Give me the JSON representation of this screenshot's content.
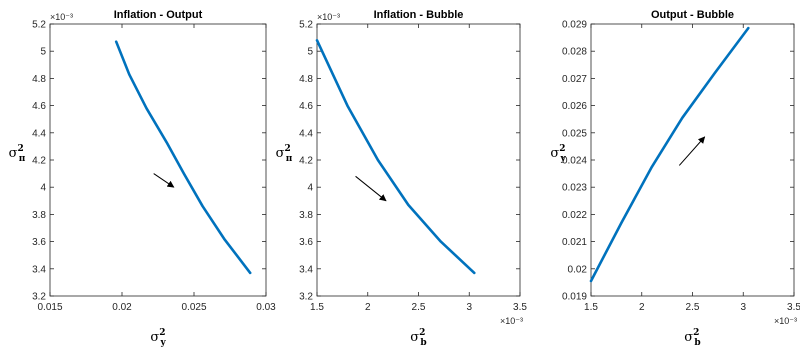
{
  "chart_data": [
    {
      "type": "line",
      "title": "Inflation - Output",
      "xlabel": {
        "base": "σ",
        "sup": "2",
        "sub": "y"
      },
      "ylabel": {
        "base": "σ",
        "sup": "2",
        "sub": "π"
      },
      "xlim": [
        0.015,
        0.03
      ],
      "ylim": [
        0.0032,
        0.0052
      ],
      "x_ticks": [
        0.015,
        0.02,
        0.025,
        0.03
      ],
      "x_tick_labels": [
        "0.015",
        "0.02",
        "0.025",
        "0.03"
      ],
      "x_exponent": "",
      "y_ticks": [
        0.0032,
        0.0034,
        0.0036,
        0.0038,
        0.004,
        0.0042,
        0.0044,
        0.0046,
        0.0048,
        0.005,
        0.0052
      ],
      "y_tick_labels": [
        "3.2",
        "3.4",
        "3.6",
        "3.8",
        "4",
        "4.2",
        "4.4",
        "4.6",
        "4.8",
        "5",
        "5.2"
      ],
      "y_exponent": "×10⁻³",
      "series": [
        {
          "color": "#0072bd",
          "x": [
            0.0196,
            0.0205,
            0.0217,
            0.0231,
            0.0243,
            0.0256,
            0.0271,
            0.0289
          ],
          "y": [
            0.00507,
            0.00483,
            0.00458,
            0.00433,
            0.0041,
            0.00386,
            0.00362,
            0.00337
          ]
        }
      ],
      "arrow": {
        "from": [
          0.0222,
          0.0041
        ],
        "to": [
          0.0236,
          0.004
        ]
      }
    },
    {
      "type": "line",
      "title": "Inflation - Bubble",
      "xlabel": {
        "base": "σ",
        "sup": "2",
        "sub": "b"
      },
      "ylabel": {
        "base": "σ",
        "sup": "2",
        "sub": "π"
      },
      "xlim": [
        0.0015,
        0.0035
      ],
      "ylim": [
        0.0032,
        0.0052
      ],
      "x_ticks": [
        0.0015,
        0.002,
        0.0025,
        0.003,
        0.0035
      ],
      "x_tick_labels": [
        "1.5",
        "2",
        "2.5",
        "3",
        "3.5"
      ],
      "x_exponent": "×10⁻³",
      "y_ticks": [
        0.0032,
        0.0034,
        0.0036,
        0.0038,
        0.004,
        0.0042,
        0.0044,
        0.0046,
        0.0048,
        0.005,
        0.0052
      ],
      "y_tick_labels": [
        "3.2",
        "3.4",
        "3.6",
        "3.8",
        "4",
        "4.2",
        "4.4",
        "4.6",
        "4.8",
        "5",
        "5.2"
      ],
      "y_exponent": "×10⁻³",
      "series": [
        {
          "color": "#0072bd",
          "x": [
            0.0015,
            0.0018,
            0.0021,
            0.0024,
            0.00272,
            0.00305
          ],
          "y": [
            0.00508,
            0.0046,
            0.0042,
            0.00387,
            0.0036,
            0.00337
          ]
        }
      ],
      "arrow": {
        "from": [
          0.00188,
          0.00408
        ],
        "to": [
          0.00218,
          0.0039
        ]
      }
    },
    {
      "type": "line",
      "title": "Output - Bubble",
      "xlabel": {
        "base": "σ",
        "sup": "2",
        "sub": "b"
      },
      "ylabel": {
        "base": "σ",
        "sup": "2",
        "sub": "y"
      },
      "xlim": [
        0.0015,
        0.0035
      ],
      "ylim": [
        0.019,
        0.029
      ],
      "x_ticks": [
        0.0015,
        0.002,
        0.0025,
        0.003,
        0.0035
      ],
      "x_tick_labels": [
        "1.5",
        "2",
        "2.5",
        "3",
        "3.5"
      ],
      "x_exponent": "×10⁻³",
      "y_ticks": [
        0.019,
        0.02,
        0.021,
        0.022,
        0.023,
        0.024,
        0.025,
        0.026,
        0.027,
        0.028,
        0.029
      ],
      "y_tick_labels": [
        "0.019",
        "0.02",
        "0.021",
        "0.022",
        "0.023",
        "0.024",
        "0.025",
        "0.026",
        "0.027",
        "0.028",
        "0.029"
      ],
      "y_exponent": "",
      "series": [
        {
          "color": "#0072bd",
          "x": [
            0.0015,
            0.0018,
            0.0021,
            0.0024,
            0.00272,
            0.00305
          ],
          "y": [
            0.01955,
            0.0217,
            0.02375,
            0.02555,
            0.0272,
            0.02885
          ]
        }
      ],
      "arrow": {
        "from": [
          0.00237,
          0.0238
        ],
        "to": [
          0.00262,
          0.02485
        ]
      }
    }
  ]
}
